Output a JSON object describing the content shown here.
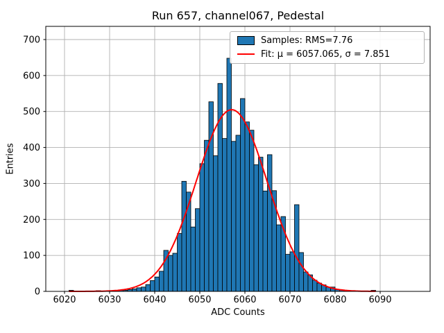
{
  "figure": {
    "title": "Run 657, channel067, Pedestal",
    "xlabel": "ADC Counts",
    "ylabel": "Entries"
  },
  "legend": {
    "samples_label": "Samples: RMS=7.76",
    "fit_label": "Fit: μ = 6057.065, σ = 7.851"
  },
  "colors": {
    "bar_fill": "#1f77b4",
    "bar_edge": "#000000",
    "fit_line": "#ff0000",
    "grid": "#b0b0b0",
    "axis": "#000000",
    "background": "#ffffff"
  },
  "chart_data": {
    "type": "bar",
    "subtype": "histogram-with-gaussian-fit",
    "title": "Run 657, channel067, Pedestal",
    "xlabel": "ADC Counts",
    "ylabel": "Entries",
    "bin_width": 1,
    "bin_start": 6021,
    "counts": [
      3,
      0,
      0,
      0,
      0,
      0,
      2,
      0,
      0,
      0,
      2,
      3,
      3,
      5,
      7,
      10,
      12,
      19,
      30,
      40,
      56,
      114,
      100,
      106,
      161,
      306,
      276,
      179,
      230,
      355,
      420,
      527,
      377,
      578,
      425,
      648,
      417,
      434,
      536,
      471,
      448,
      352,
      373,
      279,
      380,
      280,
      185,
      208,
      103,
      110,
      241,
      108,
      54,
      46,
      31,
      23,
      18,
      12,
      12,
      5,
      4,
      3,
      2,
      2,
      0,
      0,
      0,
      3
    ],
    "rms": 7.76,
    "fit": {
      "type": "gaussian",
      "mu": 6057.065,
      "sigma": 7.851,
      "amplitude": 505,
      "x_range": [
        6021,
        6089
      ]
    },
    "x_ticks": [
      6020,
      6030,
      6040,
      6050,
      6060,
      6070,
      6080,
      6090
    ],
    "y_ticks": [
      0,
      100,
      200,
      300,
      400,
      500,
      600,
      700
    ],
    "xlim": [
      6015.8,
      6101.1
    ],
    "ylim": [
      0,
      737
    ],
    "grid": true,
    "legend_position": "upper right",
    "legend_entries": [
      "Samples: RMS=7.76",
      "Fit: μ = 6057.065, σ = 7.851"
    ]
  }
}
